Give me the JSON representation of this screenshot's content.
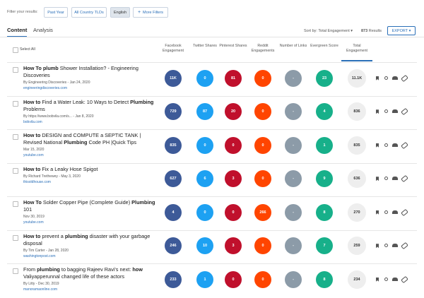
{
  "filters": {
    "label": "Filter your results:",
    "buttons": [
      "Past Year",
      "All Country TLDs",
      "English",
      "More Filters"
    ]
  },
  "tabs": [
    "Content",
    "Analysis"
  ],
  "toolbar": {
    "sort": "Sort by: Total Engagement",
    "count": "873",
    "results": "Results",
    "export": "EXPORT"
  },
  "table": {
    "select_all": "Select All",
    "columns": [
      "Facebook Engagement",
      "Twitter Shares",
      "Pinterest Shares",
      "Reddit Engagements",
      "Number of Links",
      "Evergreen Score",
      "Total Engagement"
    ],
    "rows": [
      {
        "title": [
          {
            "text": "How To plumb",
            "bold": true
          },
          {
            "text": " Shower Installation? - Engineering Discoveries",
            "bold": false
          }
        ],
        "meta": "By Engineering Discoveries - Jan 24, 2020",
        "domain": "engineeringdiscoveries.com",
        "values": [
          "11K",
          "0",
          "81",
          "0",
          "-",
          "23",
          "11.1K"
        ]
      },
      {
        "title": [
          {
            "text": "How to",
            "bold": true
          },
          {
            "text": " Find a Water Leak: 10 Ways to Detect ",
            "bold": false
          },
          {
            "text": "Plumbing",
            "bold": true
          },
          {
            "text": " Problems",
            "bold": false
          }
        ],
        "meta": "By https://www.bobvila.com/s... - Jan 8, 2020",
        "domain": "bobvila.com",
        "values": [
          "729",
          "87",
          "20",
          "0",
          "-",
          "4",
          "836"
        ]
      },
      {
        "title": [
          {
            "text": "How to",
            "bold": true
          },
          {
            "text": " DESIGN and COMPUTE a SEPTIC TANK | Revised National ",
            "bold": false
          },
          {
            "text": "Plumbing",
            "bold": true
          },
          {
            "text": " Code PH |Quick Tips",
            "bold": false
          }
        ],
        "meta": "Mar 15, 2020",
        "domain": "youtube.com",
        "values": [
          "835",
          "0",
          "0",
          "0",
          "-",
          "1",
          "835"
        ]
      },
      {
        "title": [
          {
            "text": "How to",
            "bold": true
          },
          {
            "text": " Fix a Leaky Hose Spigot",
            "bold": false
          }
        ],
        "meta": "By Richard Trethewey - May 3, 2020",
        "domain": "thisoldhouse.com",
        "values": [
          "627",
          "6",
          "3",
          "0",
          "-",
          "9",
          "636"
        ]
      },
      {
        "title": [
          {
            "text": "How To",
            "bold": true
          },
          {
            "text": " Solder Copper Pipe (Complete Guide) ",
            "bold": false
          },
          {
            "text": "Plumbing",
            "bold": true
          },
          {
            "text": " 101",
            "bold": false
          }
        ],
        "meta": "Nov 30, 2019",
        "domain": "youtube.com",
        "values": [
          "4",
          "0",
          "0",
          "266",
          "-",
          "8",
          "270"
        ]
      },
      {
        "title": [
          {
            "text": "How to",
            "bold": true
          },
          {
            "text": " prevent a ",
            "bold": false
          },
          {
            "text": "plumbing",
            "bold": true
          },
          {
            "text": " disaster with your garbage disposal",
            "bold": false
          }
        ],
        "meta": "By Tim Carter - Jan 28, 2020",
        "domain": "washingtonpost.com",
        "values": [
          "246",
          "10",
          "3",
          "0",
          "-",
          "7",
          "259"
        ]
      },
      {
        "title": [
          {
            "text": "From ",
            "bold": false
          },
          {
            "text": "plumbing",
            "bold": true
          },
          {
            "text": " to bagging Rajeev Ravi's next: ",
            "bold": false
          },
          {
            "text": "how",
            "bold": true
          },
          {
            "text": " Valiyapperunnal changed life of these actors",
            "bold": false
          }
        ],
        "meta": "By Litty - Dec 30, 2019",
        "domain": "manoramaonline.com",
        "values": [
          "233",
          "1",
          "0",
          "0",
          "-",
          "8",
          "234"
        ]
      }
    ]
  }
}
